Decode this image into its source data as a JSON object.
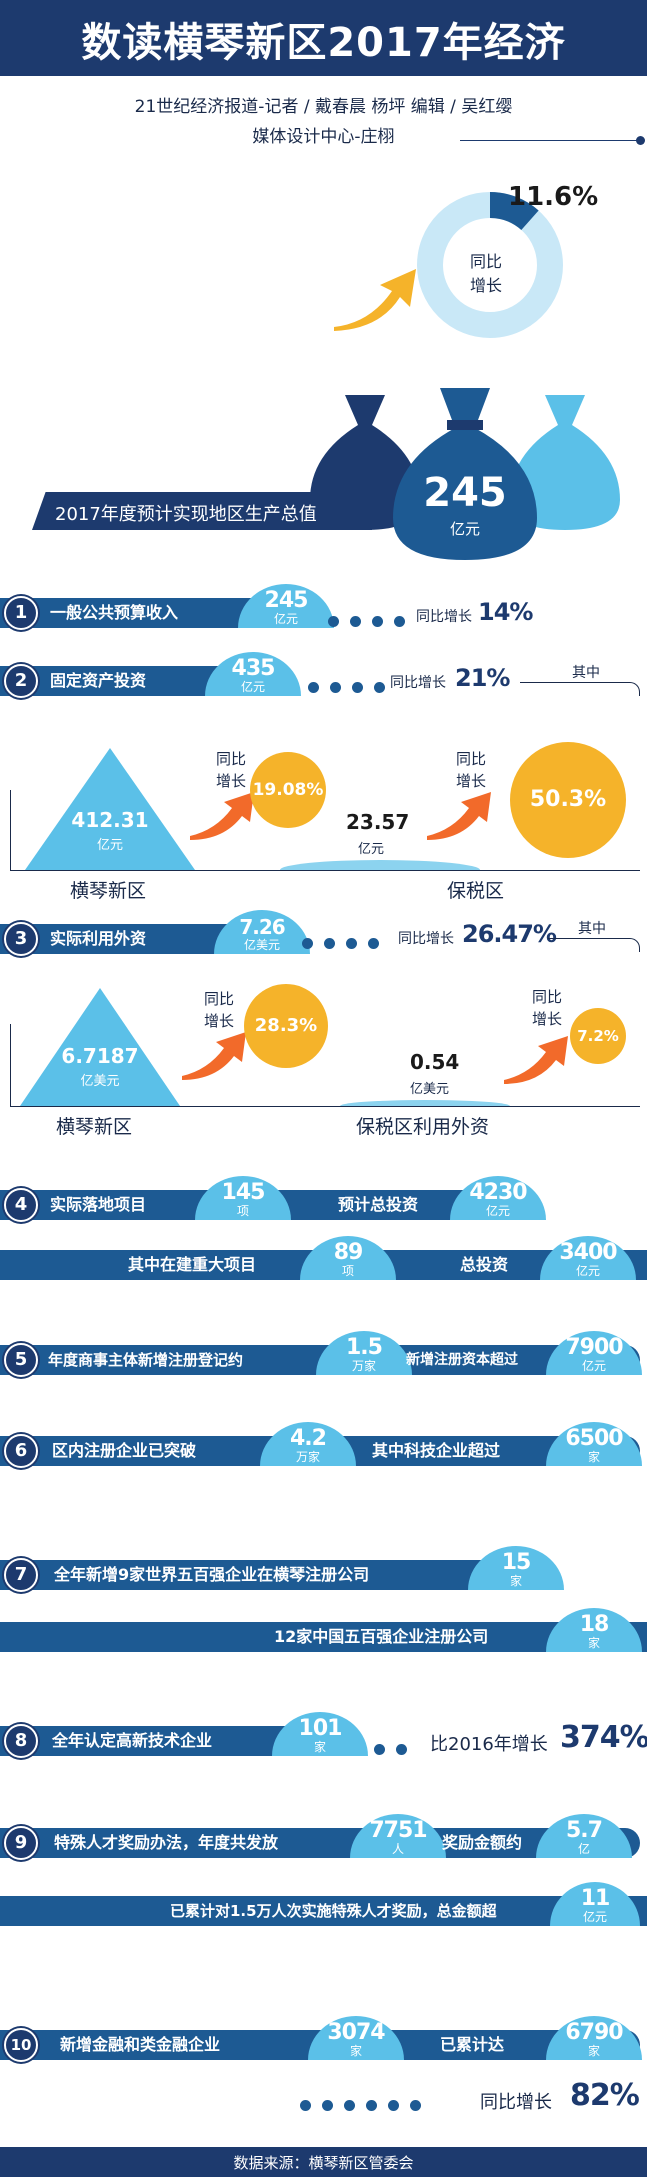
{
  "header": {
    "title": "数读横琴新区2017年经济",
    "credits_line1": "21世纪经济报道-记者 / 戴春晨  杨坪  编辑 / 吴红缨",
    "credits_line2": "媒体设计中心-庄栩"
  },
  "gdp": {
    "growth_value": "11.6%",
    "growth_label_1": "同比",
    "growth_label_2": "增长",
    "growth_fraction": 0.116,
    "label": "2017年度预计实现地区生产总值",
    "value": "245",
    "unit": "亿元"
  },
  "item1": {
    "num": "1",
    "label": "一般公共预算收入",
    "value": "245",
    "unit": "亿元",
    "growth_label": "同比增长",
    "growth": "14%"
  },
  "item2": {
    "num": "2",
    "label": "固定资产投资",
    "value": "435",
    "unit": "亿元",
    "growth_label": "同比增长",
    "growth": "21%",
    "note": "其中",
    "left_value": "412.31",
    "left_unit": "亿元",
    "left_growth_label_1": "同比",
    "left_growth_label_2": "增长",
    "left_growth": "19.08%",
    "left_name": "横琴新区",
    "right_value": "23.57",
    "right_unit": "亿元",
    "right_growth_label_1": "同比",
    "right_growth_label_2": "增长",
    "right_growth": "50.3%",
    "right_name": "保税区"
  },
  "item3": {
    "num": "3",
    "label": "实际利用外资",
    "value": "7.26",
    "unit": "亿美元",
    "growth_label": "同比增长",
    "growth": "26.47%",
    "note": "其中",
    "left_value": "6.7187",
    "left_unit": "亿美元",
    "left_growth_label_1": "同比",
    "left_growth_label_2": "增长",
    "left_growth": "28.3%",
    "left_name": "横琴新区",
    "right_value": "0.54",
    "right_unit": "亿美元",
    "right_growth_label_1": "同比",
    "right_growth_label_2": "增长",
    "right_growth": "7.2%",
    "right_name": "保税区利用外资"
  },
  "item4": {
    "num": "4",
    "label": "实际落地项目",
    "value": "145",
    "unit": "项",
    "label2": "预计总投资",
    "value2": "4230",
    "unit2": "亿元",
    "sub_label": "其中在建重大项目",
    "sub_value": "89",
    "sub_unit": "项",
    "sub_label2": "总投资",
    "sub_value2": "3400",
    "sub_unit2": "亿元"
  },
  "item5": {
    "num": "5",
    "label": "年度商事主体新增注册登记约",
    "value": "1.5",
    "unit": "万家",
    "label2": "新增注册资本超过",
    "value2": "7900",
    "unit2": "亿元"
  },
  "item6": {
    "num": "6",
    "label": "区内注册企业已突破",
    "value": "4.2",
    "unit": "万家",
    "label2": "其中科技企业超过",
    "value2": "6500",
    "unit2": "家"
  },
  "item7": {
    "num": "7",
    "label": "全年新增9家世界五百强企业在横琴注册公司",
    "value": "15",
    "unit": "家",
    "sub_label": "12家中国五百强企业注册公司",
    "sub_value": "18",
    "sub_unit": "家"
  },
  "item8": {
    "num": "8",
    "label": "全年认定高新技术企业",
    "value": "101",
    "unit": "家",
    "growth_label": "比2016年增长",
    "growth": "374%"
  },
  "item9": {
    "num": "9",
    "label": "特殊人才奖励办法，年度共发放",
    "value": "7751",
    "unit": "人",
    "label2": "奖励金额约",
    "value2": "5.7",
    "unit2": "亿",
    "sub_label": "已累计对1.5万人次实施特殊人才奖励，总金额超",
    "sub_value": "11",
    "sub_unit": "亿元"
  },
  "item10": {
    "num": "10",
    "label": "新增金融和类金融企业",
    "value": "3074",
    "unit": "家",
    "label2": "已累计达",
    "value2": "6790",
    "unit2": "家",
    "growth_label": "同比增长",
    "growth": "82%"
  },
  "footer": {
    "source": "数据来源：横琴新区管委会"
  },
  "colors": {
    "navy": "#1d3a6e",
    "blue": "#1d5a93",
    "light_blue": "#5bc0e8",
    "orange": "#f5b32a",
    "arrow_orange": "#f26a2a"
  }
}
